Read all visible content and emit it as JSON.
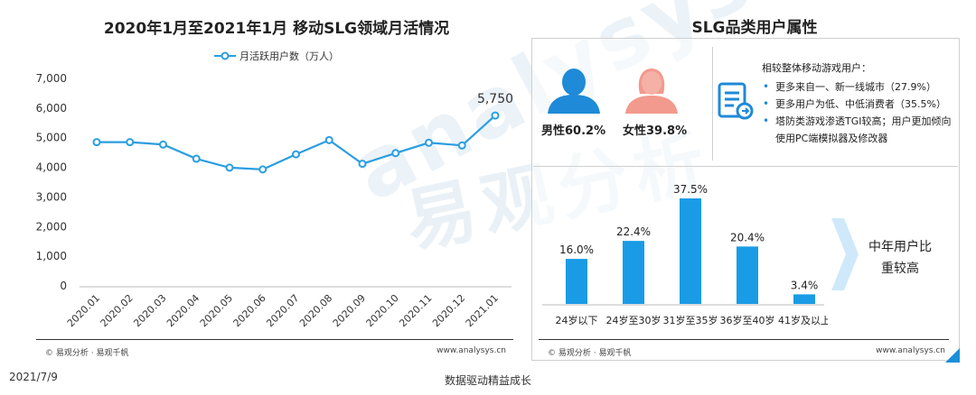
{
  "watermark": {
    "en": "analysys",
    "cn": "易观分析"
  },
  "left_panel": {
    "title": "2020年1月至2021年1月 移动SLG领域月活情况",
    "source": "© 易观分析 · 易观千帆",
    "site": "www.analysys.cn"
  },
  "right_panel": {
    "title": "SLG品类用户属性",
    "gender": {
      "male_label": "男性60.2%",
      "female_label": "女性39.8%",
      "male_color": "#1f8ad7",
      "female_color": "#f29a8d"
    },
    "attributes": {
      "intro": "相较整体移动游戏用户：",
      "items": [
        "更多来自一、新一线城市（27.9%）",
        "更多用户为低、中低消费者（35.5%）",
        "塔防类游戏渗透TGI较高；用户更加倾向使用PC端模拟器及修改器"
      ]
    },
    "callout": "中年用户比重较高",
    "source": "© 易观分析 · 易观千帆",
    "site": "www.analysys.cn"
  },
  "footer": {
    "date": "2021/7/9",
    "slogan": "数据驱动精益成长"
  },
  "chart_data": [
    {
      "type": "line",
      "title": "2020年1月至2021年1月 移动SLG领域月活情况",
      "legend": "月活跃用户数（万人）",
      "legend_position": "top",
      "color": "#2a9ee0",
      "x": [
        "2020.01",
        "2020.02",
        "2020.03",
        "2020.04",
        "2020.05",
        "2020.06",
        "2020.07",
        "2020.08",
        "2020.09",
        "2020.10",
        "2020.11",
        "2020.12",
        "2021.01"
      ],
      "values": [
        4850,
        4850,
        4770,
        4290,
        3990,
        3930,
        4440,
        4920,
        4120,
        4480,
        4830,
        4740,
        5750
      ],
      "ylim": [
        0,
        7000
      ],
      "yticks": [
        "0",
        "1,000",
        "2,000",
        "3,000",
        "4,000",
        "5,000",
        "6,000",
        "7,000"
      ],
      "annotation": {
        "index": 12,
        "text": "5,750"
      },
      "grid": false
    },
    {
      "type": "bar",
      "color": "#1a9be6",
      "categories": [
        "24岁以下",
        "24岁至30岁",
        "31岁至35岁",
        "36岁至40岁",
        "41岁及以上"
      ],
      "values": [
        16.0,
        22.4,
        37.5,
        20.4,
        3.4
      ],
      "labels": [
        "16.0%",
        "22.4%",
        "37.5%",
        "20.4%",
        "3.4%"
      ],
      "grid": false
    }
  ]
}
